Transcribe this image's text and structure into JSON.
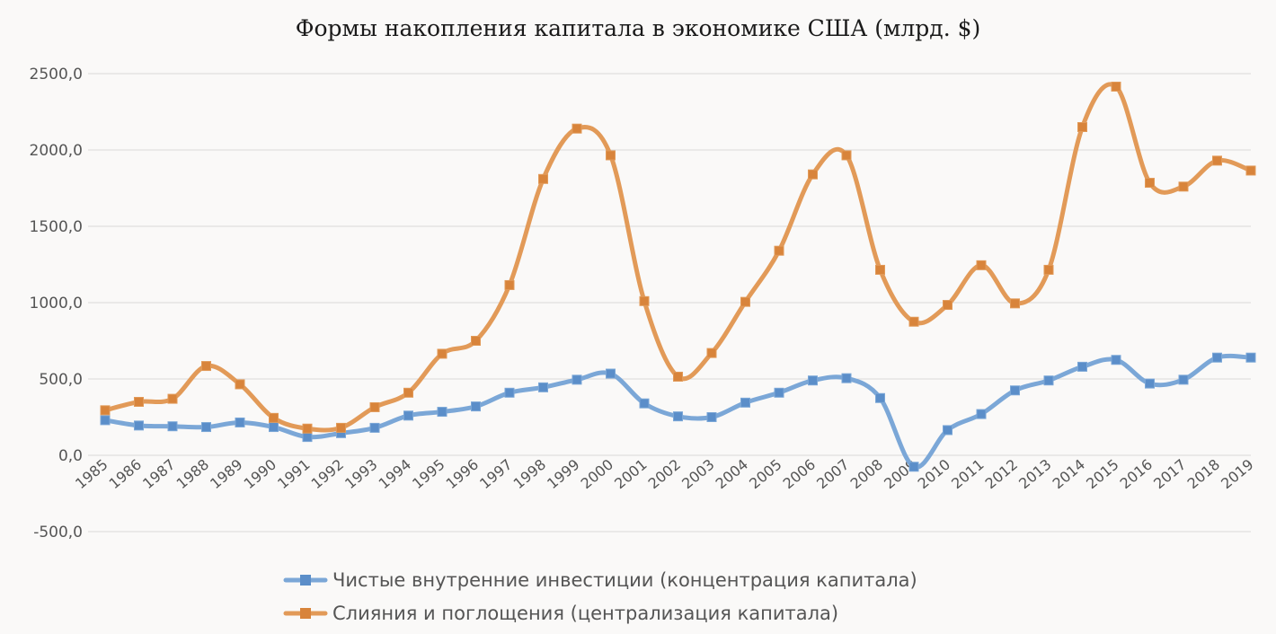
{
  "chart_data": {
    "type": "line",
    "title": "Формы накопления капитала в экономике США (млрд. $)",
    "xlabel": "",
    "ylabel": "",
    "ylim": [
      -500,
      2500
    ],
    "yticks": [
      2500,
      2000,
      1500,
      1000,
      500,
      0,
      -500
    ],
    "ytick_labels": [
      "2500,0",
      "2000,0",
      "1500,0",
      "1000,0",
      "500,0",
      "0,0",
      "-500,0"
    ],
    "grid": true,
    "legend_position": "bottom",
    "categories": [
      "1985",
      "1986",
      "1987",
      "1988",
      "1989",
      "1990",
      "1991",
      "1992",
      "1993",
      "1994",
      "1995",
      "1996",
      "1997",
      "1998",
      "1999",
      "2000",
      "2001",
      "2002",
      "2003",
      "2004",
      "2005",
      "2006",
      "2007",
      "2008",
      "2009",
      "2010",
      "2011",
      "2012",
      "2013",
      "2014",
      "2015",
      "2016",
      "2017",
      "2018",
      "2019"
    ],
    "series": [
      {
        "name": "Чистые внутренние инвестиции (концентрация капитала)",
        "color": "#7ba7d7",
        "marker_color": "#5b8ec9",
        "values": [
          230,
          195,
          190,
          185,
          215,
          185,
          120,
          145,
          180,
          260,
          285,
          320,
          410,
          445,
          495,
          535,
          340,
          255,
          250,
          345,
          410,
          490,
          505,
          375,
          -75,
          165,
          270,
          425,
          490,
          580,
          625,
          470,
          495,
          640,
          640
        ]
      },
      {
        "name": "Слияния и поглощения (централизация капитала)",
        "color": "#e29a58",
        "marker_color": "#d8843b",
        "values": [
          295,
          350,
          370,
          585,
          465,
          245,
          175,
          180,
          315,
          410,
          665,
          750,
          1115,
          1810,
          2140,
          1965,
          1010,
          515,
          670,
          1005,
          1340,
          1840,
          1965,
          1215,
          875,
          985,
          1245,
          995,
          1215,
          2150,
          2415,
          1785,
          1760,
          1930,
          1865
        ]
      }
    ]
  }
}
